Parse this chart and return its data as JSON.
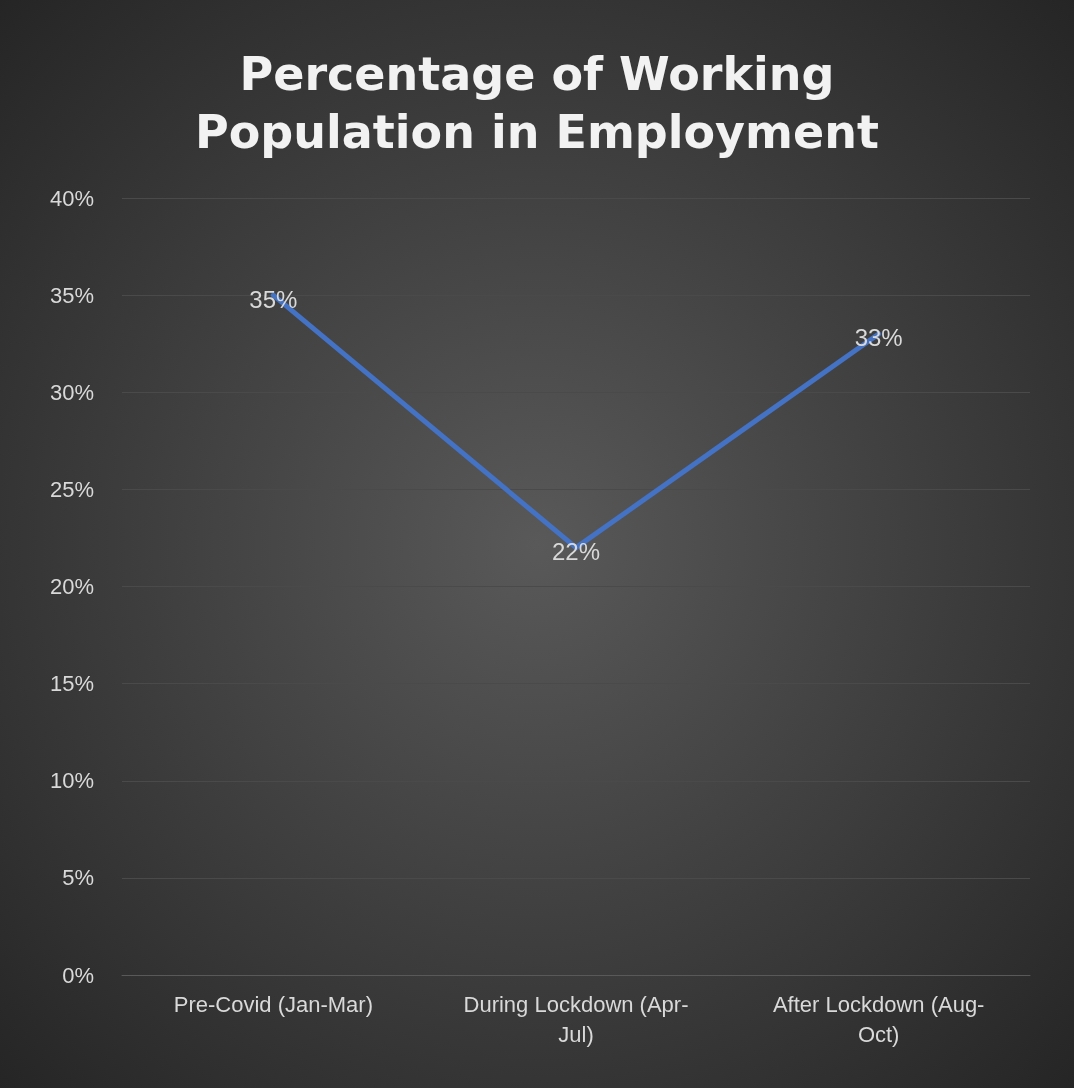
{
  "chart_data": {
    "type": "line",
    "title": "Percentage of Working Population in Employment",
    "categories": [
      "Pre-Covid (Jan-Mar)",
      "During Lockdown (Apr-Jul)",
      "After Lockdown (Aug-Oct)"
    ],
    "series": [
      {
        "color": "#4472c4",
        "values": [
          35,
          22,
          33
        ],
        "value_labels": [
          "35%",
          "22%",
          "33%"
        ]
      }
    ],
    "ylim": [
      0,
      40
    ],
    "yticks": [
      {
        "value": 0,
        "label": "0%"
      },
      {
        "value": 5,
        "label": "5%"
      },
      {
        "value": 10,
        "label": "10%"
      },
      {
        "value": 15,
        "label": "15%"
      },
      {
        "value": 20,
        "label": "20%"
      },
      {
        "value": 25,
        "label": "25%"
      },
      {
        "value": 30,
        "label": "30%"
      },
      {
        "value": 35,
        "label": "35%"
      },
      {
        "value": 40,
        "label": "40%"
      }
    ],
    "grid": "y",
    "marker": "none",
    "line_style": "solid"
  }
}
